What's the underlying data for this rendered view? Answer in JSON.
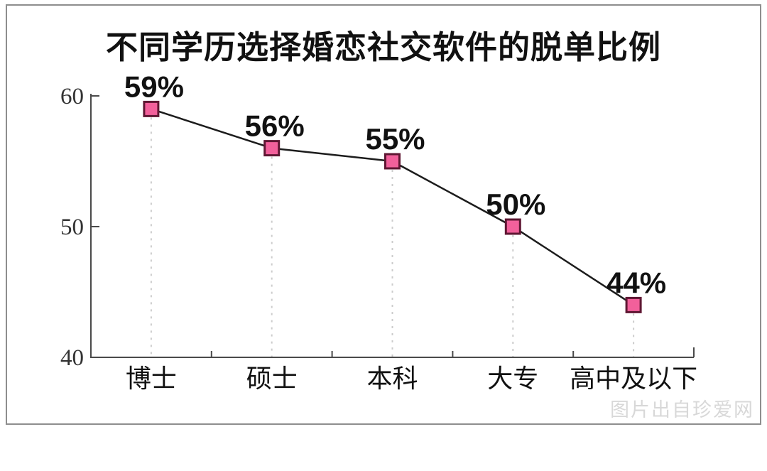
{
  "page": {
    "watermark": "图片出自珍爱网"
  },
  "chart_data": {
    "type": "line",
    "title": "不同学历选择婚恋社交软件的脱单比例",
    "categories": [
      "博士",
      "硕士",
      "本科",
      "大专",
      "高中及以下"
    ],
    "values": [
      59,
      56,
      55,
      50,
      44
    ],
    "data_labels": [
      "59%",
      "56%",
      "55%",
      "50%",
      "44%"
    ],
    "xlabel": "",
    "ylabel": "",
    "ylim": [
      40,
      60
    ],
    "yticks": [
      40,
      50,
      60
    ],
    "legend": "none",
    "grid": "dashed-droplines-from-points",
    "marker": "square",
    "colors": {
      "marker_fill": "#f2609b",
      "marker_stroke": "#5f1733",
      "line": "#1c1c1c",
      "axis": "#4a4a4a",
      "dropline": "#cccccc",
      "label_text": "#111111",
      "tick_text": "#333333",
      "watermark": "#d8d8d8",
      "card_border": "#8e8e8e"
    }
  }
}
